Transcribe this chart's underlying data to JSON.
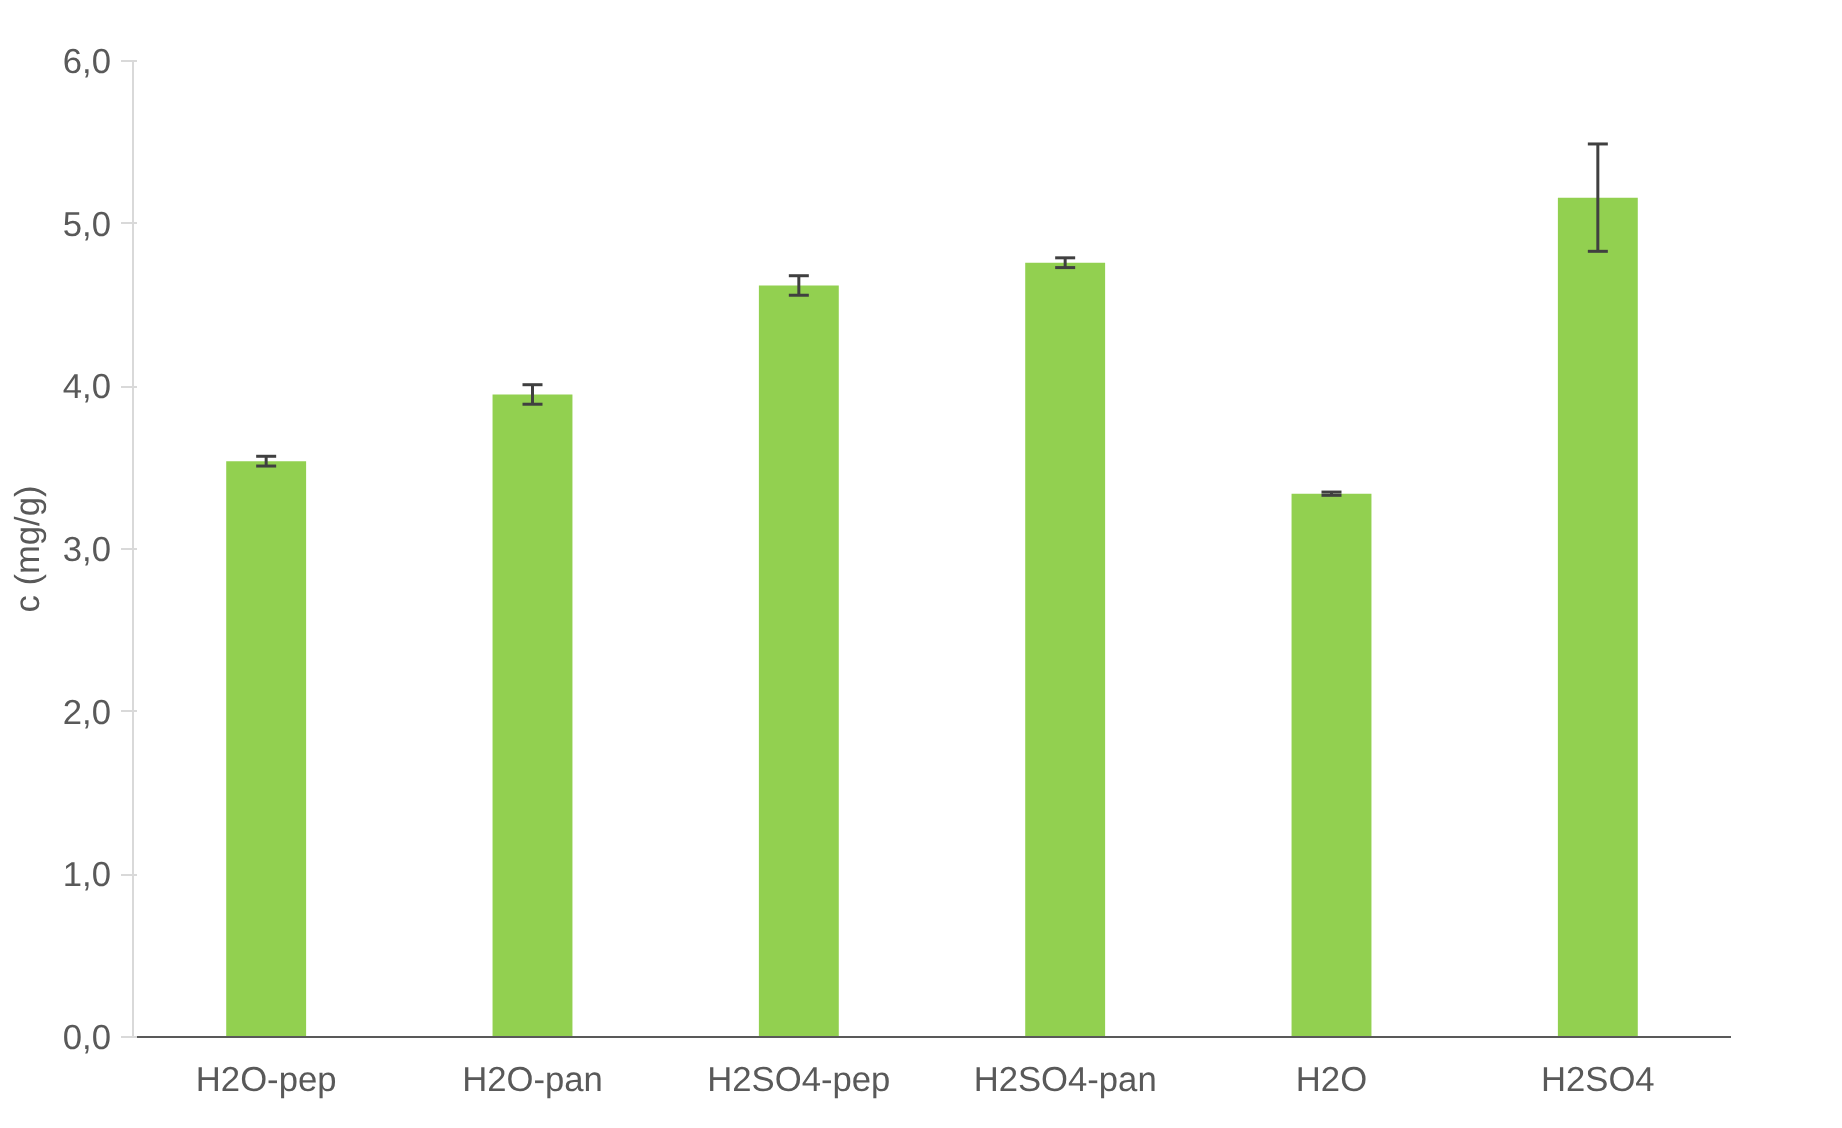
{
  "chart_data": {
    "type": "bar",
    "ylabel": "c (mg/g)",
    "categories": [
      "H2O-pep",
      "H2O-pan",
      "H2SO4-pep",
      "H2SO4-pan",
      "H2O",
      "H2SO4"
    ],
    "values": [
      3.54,
      3.95,
      4.62,
      4.76,
      3.34,
      5.16
    ],
    "errors": [
      0.03,
      0.06,
      0.06,
      0.03,
      0.01,
      0.33
    ],
    "color": "#92d050",
    "ylim": [
      0,
      6
    ],
    "yticks": [
      {
        "value": 0,
        "label": "0,0"
      },
      {
        "value": 1,
        "label": "1,0"
      },
      {
        "value": 2,
        "label": "2,0"
      },
      {
        "value": 3,
        "label": "3,0"
      },
      {
        "value": 4,
        "label": "4,0"
      },
      {
        "value": 5,
        "label": "5,0"
      },
      {
        "value": 6,
        "label": "6,0"
      }
    ],
    "grid": false
  }
}
